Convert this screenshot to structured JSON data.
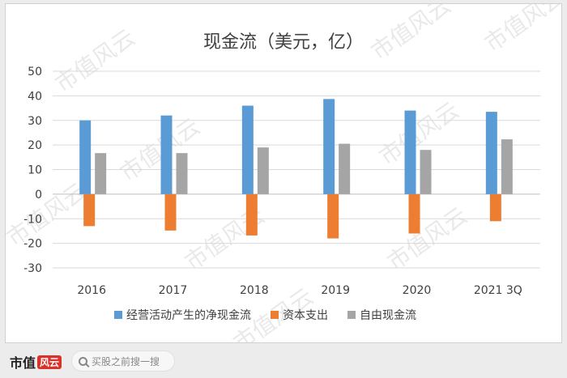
{
  "watermark_text": "市值风云",
  "chart_data": {
    "type": "bar",
    "title": "现金流（美元，亿）",
    "categories": [
      "2016",
      "2017",
      "2018",
      "2019",
      "2020",
      "2021 3Q"
    ],
    "ylim": [
      -30,
      50
    ],
    "yticks": [
      50,
      40,
      30,
      20,
      10,
      0,
      -10,
      -20,
      -30
    ],
    "grid": true,
    "legend_position": "bottom",
    "series": [
      {
        "name": "经营活动产生的净现金流",
        "color": "#5b9bd5",
        "values": [
          30,
          32,
          36,
          38.7,
          34,
          33.5
        ]
      },
      {
        "name": "资本支出",
        "color": "#ed7d31",
        "values": [
          -13,
          -14.8,
          -16.8,
          -18,
          -16,
          -11
        ]
      },
      {
        "name": "自由现金流",
        "color": "#a5a5a5",
        "values": [
          16.7,
          16.7,
          19,
          20.5,
          18,
          22.3
        ]
      }
    ]
  },
  "footer": {
    "logo_text": "市值",
    "logo_mark": "风云",
    "search_placeholder": "买股之前搜一搜"
  }
}
